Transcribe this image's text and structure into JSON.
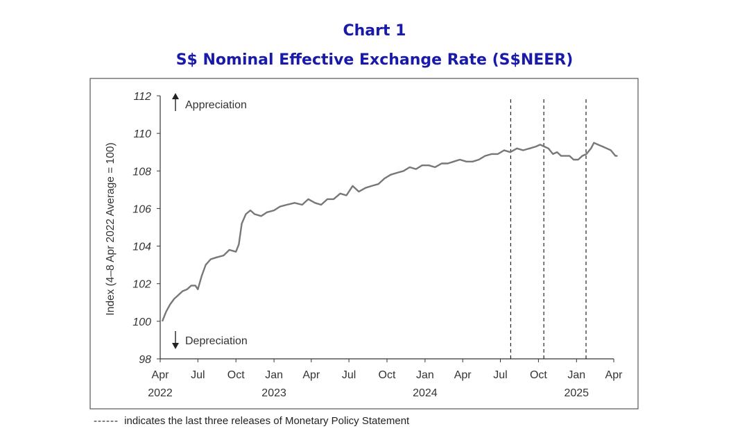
{
  "chart_data": {
    "type": "line",
    "title": "Chart 1",
    "subtitle": "S$ Nominal Effective Exchange Rate (S$NEER)",
    "ylabel": "Index (4–8 Apr 2022 Average = 100)",
    "xlabel": "",
    "ylim": [
      98,
      112
    ],
    "yticks": [
      98,
      100,
      102,
      104,
      106,
      108,
      110,
      112
    ],
    "xlim": [
      "2022-04-01",
      "2025-04-15"
    ],
    "xticks": [
      {
        "date": "2022-04-01",
        "label": "Apr",
        "year": "2022"
      },
      {
        "date": "2022-07-01",
        "label": "Jul",
        "year": ""
      },
      {
        "date": "2022-10-01",
        "label": "Oct",
        "year": ""
      },
      {
        "date": "2023-01-01",
        "label": "Jan",
        "year": "2023"
      },
      {
        "date": "2023-04-01",
        "label": "Apr",
        "year": ""
      },
      {
        "date": "2023-07-01",
        "label": "Jul",
        "year": ""
      },
      {
        "date": "2023-10-01",
        "label": "Oct",
        "year": ""
      },
      {
        "date": "2024-01-01",
        "label": "Jan",
        "year": "2024"
      },
      {
        "date": "2024-04-01",
        "label": "Apr",
        "year": ""
      },
      {
        "date": "2024-07-01",
        "label": "Jul",
        "year": ""
      },
      {
        "date": "2024-10-01",
        "label": "Oct",
        "year": ""
      },
      {
        "date": "2025-01-01",
        "label": "Jan",
        "year": "2025"
      },
      {
        "date": "2025-04-01",
        "label": "Apr",
        "year": ""
      }
    ],
    "grid": false,
    "series": [
      {
        "color": "#777777",
        "points": [
          [
            "2022-04-06",
            100.0
          ],
          [
            "2022-04-15",
            100.5
          ],
          [
            "2022-04-25",
            100.9
          ],
          [
            "2022-05-05",
            101.2
          ],
          [
            "2022-05-15",
            101.4
          ],
          [
            "2022-05-25",
            101.6
          ],
          [
            "2022-06-05",
            101.7
          ],
          [
            "2022-06-15",
            101.9
          ],
          [
            "2022-06-25",
            101.9
          ],
          [
            "2022-07-01",
            101.7
          ],
          [
            "2022-07-10",
            102.4
          ],
          [
            "2022-07-20",
            103.0
          ],
          [
            "2022-08-01",
            103.3
          ],
          [
            "2022-08-15",
            103.4
          ],
          [
            "2022-09-01",
            103.5
          ],
          [
            "2022-09-15",
            103.8
          ],
          [
            "2022-10-01",
            103.7
          ],
          [
            "2022-10-08",
            104.1
          ],
          [
            "2022-10-15",
            105.2
          ],
          [
            "2022-10-25",
            105.7
          ],
          [
            "2022-11-05",
            105.9
          ],
          [
            "2022-11-15",
            105.7
          ],
          [
            "2022-12-01",
            105.6
          ],
          [
            "2022-12-15",
            105.8
          ],
          [
            "2023-01-01",
            105.9
          ],
          [
            "2023-01-15",
            106.1
          ],
          [
            "2023-02-01",
            106.2
          ],
          [
            "2023-02-20",
            106.3
          ],
          [
            "2023-03-10",
            106.2
          ],
          [
            "2023-03-25",
            106.5
          ],
          [
            "2023-04-10",
            106.3
          ],
          [
            "2023-04-25",
            106.2
          ],
          [
            "2023-05-10",
            106.5
          ],
          [
            "2023-05-25",
            106.5
          ],
          [
            "2023-06-10",
            106.8
          ],
          [
            "2023-06-25",
            106.7
          ],
          [
            "2023-07-10",
            107.2
          ],
          [
            "2023-07-25",
            106.9
          ],
          [
            "2023-08-10",
            107.1
          ],
          [
            "2023-08-25",
            107.2
          ],
          [
            "2023-09-10",
            107.3
          ],
          [
            "2023-09-25",
            107.6
          ],
          [
            "2023-10-10",
            107.8
          ],
          [
            "2023-10-25",
            107.9
          ],
          [
            "2023-11-10",
            108.0
          ],
          [
            "2023-11-25",
            108.2
          ],
          [
            "2023-12-10",
            108.1
          ],
          [
            "2023-12-25",
            108.3
          ],
          [
            "2024-01-10",
            108.3
          ],
          [
            "2024-01-25",
            108.2
          ],
          [
            "2024-02-10",
            108.4
          ],
          [
            "2024-02-25",
            108.4
          ],
          [
            "2024-03-10",
            108.5
          ],
          [
            "2024-03-25",
            108.6
          ],
          [
            "2024-04-10",
            108.5
          ],
          [
            "2024-04-25",
            108.5
          ],
          [
            "2024-05-10",
            108.6
          ],
          [
            "2024-05-25",
            108.8
          ],
          [
            "2024-06-10",
            108.9
          ],
          [
            "2024-06-25",
            108.9
          ],
          [
            "2024-07-10",
            109.1
          ],
          [
            "2024-07-25",
            109.0
          ],
          [
            "2024-08-10",
            109.2
          ],
          [
            "2024-08-25",
            109.1
          ],
          [
            "2024-09-10",
            109.2
          ],
          [
            "2024-09-25",
            109.3
          ],
          [
            "2024-10-05",
            109.4
          ],
          [
            "2024-10-15",
            109.3
          ],
          [
            "2024-10-25",
            109.2
          ],
          [
            "2024-11-05",
            108.9
          ],
          [
            "2024-11-15",
            109.0
          ],
          [
            "2024-11-25",
            108.8
          ],
          [
            "2024-12-05",
            108.8
          ],
          [
            "2024-12-15",
            108.8
          ],
          [
            "2024-12-25",
            108.6
          ],
          [
            "2025-01-05",
            108.6
          ],
          [
            "2025-01-15",
            108.8
          ],
          [
            "2025-01-25",
            108.9
          ],
          [
            "2025-02-05",
            109.2
          ],
          [
            "2025-02-12",
            109.5
          ],
          [
            "2025-02-22",
            109.4
          ],
          [
            "2025-03-05",
            109.3
          ],
          [
            "2025-03-15",
            109.2
          ],
          [
            "2025-03-25",
            109.1
          ],
          [
            "2025-04-05",
            108.8
          ],
          [
            "2025-04-10",
            108.8
          ]
        ]
      }
    ],
    "release_markers": [
      "2024-07-26",
      "2024-10-14",
      "2025-01-24"
    ],
    "annotations": {
      "appreciation": "Appreciation",
      "depreciation": "Depreciation"
    },
    "footnote": {
      "dashes": "------",
      "text": "indicates the last three releases of Monetary Policy Statement"
    }
  }
}
